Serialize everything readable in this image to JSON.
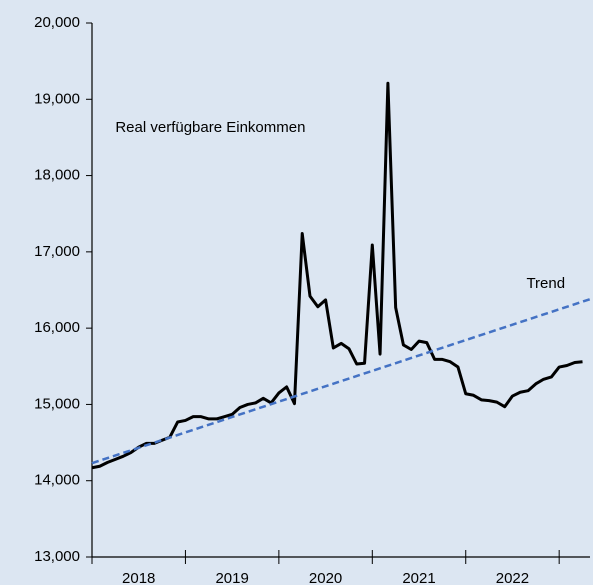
{
  "chart_data": {
    "type": "line",
    "annotations": [
      {
        "text": "Real verfügbare Einkommen",
        "x": 2018.25,
        "y": 18620
      },
      {
        "text": "Trend",
        "x": 2022.65,
        "y": 16580
      }
    ],
    "xlim": [
      2018,
      2023.33
    ],
    "xticks": [
      2018,
      2019,
      2020,
      2021,
      2022,
      2023
    ],
    "x_labels": [
      {
        "value": 2018.5,
        "label": "2018"
      },
      {
        "value": 2019.5,
        "label": "2019"
      },
      {
        "value": 2020.5,
        "label": "2020"
      },
      {
        "value": 2021.5,
        "label": "2021"
      },
      {
        "value": 2022.5,
        "label": "2022"
      }
    ],
    "ylim": [
      13000,
      20000
    ],
    "yticks": [
      {
        "value": 13000,
        "label": "13,000"
      },
      {
        "value": 14000,
        "label": "14,000"
      },
      {
        "value": 15000,
        "label": "15,000"
      },
      {
        "value": 16000,
        "label": "16,000"
      },
      {
        "value": 17000,
        "label": "17,000"
      },
      {
        "value": 18000,
        "label": "18,000"
      },
      {
        "value": 19000,
        "label": "19,000"
      },
      {
        "value": 20000,
        "label": "20,000"
      }
    ],
    "grid": false,
    "series": [
      {
        "color": "#000000",
        "dash": false,
        "x": [
          2018,
          2018.083,
          2018.167,
          2018.25,
          2018.333,
          2018.417,
          2018.5,
          2018.583,
          2018.667,
          2018.75,
          2018.833,
          2018.917,
          2019,
          2019.083,
          2019.167,
          2019.25,
          2019.333,
          2019.417,
          2019.5,
          2019.583,
          2019.667,
          2019.75,
          2019.833,
          2019.917,
          2020,
          2020.083,
          2020.167,
          2020.25,
          2020.333,
          2020.417,
          2020.5,
          2020.583,
          2020.667,
          2020.75,
          2020.833,
          2020.917,
          2021,
          2021.083,
          2021.167,
          2021.25,
          2021.333,
          2021.417,
          2021.5,
          2021.583,
          2021.667,
          2021.75,
          2021.833,
          2021.917,
          2022,
          2022.083,
          2022.167,
          2022.25,
          2022.333,
          2022.417,
          2022.5,
          2022.583,
          2022.667,
          2022.75,
          2022.833,
          2022.917,
          2023,
          2023.083,
          2023.167,
          2023.25
        ],
        "values": [
          14170,
          14190,
          14240,
          14280,
          14320,
          14370,
          14440,
          14490,
          14490,
          14530,
          14570,
          14770,
          14790,
          14840,
          14840,
          14810,
          14810,
          14840,
          14870,
          14960,
          15000,
          15020,
          15080,
          15020,
          15150,
          15230,
          15010,
          17240,
          16420,
          16280,
          16370,
          15740,
          15800,
          15730,
          15530,
          15540,
          17090,
          15660,
          19210,
          16270,
          15780,
          15720,
          15830,
          15810,
          15590,
          15590,
          15560,
          15490,
          15140,
          15120,
          15060,
          15050,
          15030,
          14970,
          15110,
          15160,
          15180,
          15270,
          15330,
          15360,
          15490,
          15510,
          15550,
          15560
        ]
      },
      {
        "color": "#4472c4",
        "dash": true,
        "x": [
          2018,
          2023.33
        ],
        "values": [
          14230,
          16380
        ]
      }
    ]
  }
}
